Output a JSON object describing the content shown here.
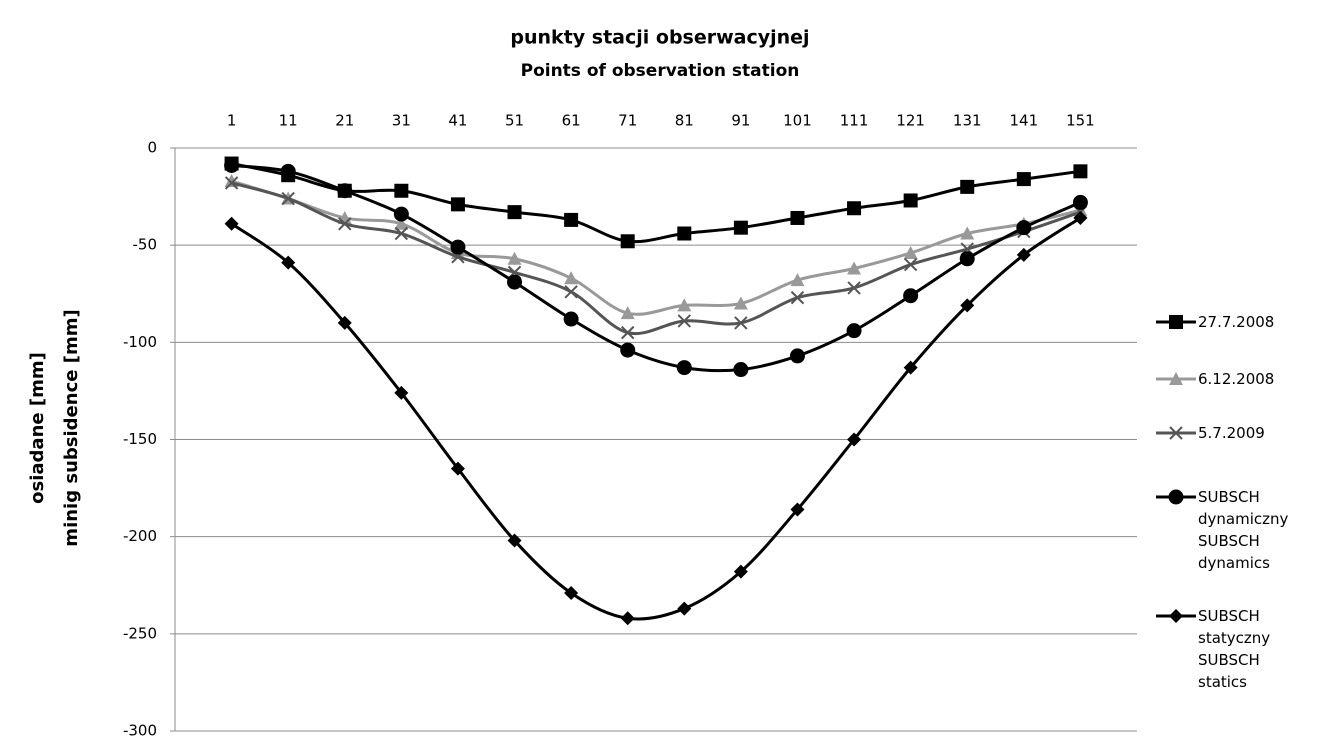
{
  "chart_data": {
    "type": "line",
    "xlabel": [
      "punkty stacji obserwacyjnej",
      "Points of observation station"
    ],
    "ylabel": [
      "osiadane [mm]",
      "minig subsidence [mm]"
    ],
    "x": [
      1,
      11,
      21,
      31,
      41,
      51,
      61,
      71,
      81,
      91,
      101,
      111,
      121,
      131,
      141,
      151
    ],
    "xlim": [
      -9,
      161
    ],
    "xticks": [
      1,
      11,
      21,
      31,
      41,
      51,
      61,
      71,
      81,
      91,
      101,
      111,
      121,
      131,
      141,
      151
    ],
    "ylim": [
      -300,
      0
    ],
    "yticks": [
      0,
      -50,
      -100,
      -150,
      -200,
      -250,
      -300
    ],
    "grid": true,
    "legend": "right",
    "series": [
      {
        "name": "27.7.2008",
        "color": "#000000",
        "marker": "square",
        "values": [
          -8,
          -14,
          -22,
          -22,
          -29,
          -33,
          -37,
          -48,
          -44,
          -41,
          -36,
          -31,
          -27,
          -20,
          -16,
          -12
        ]
      },
      {
        "name": "6.12.2008",
        "color": "#999999",
        "marker": "triangle",
        "values": [
          -17,
          -26,
          -36,
          -39,
          -54,
          -57,
          -67,
          -85,
          -81,
          -80,
          -68,
          -62,
          -54,
          -44,
          -39,
          -32
        ]
      },
      {
        "name": "5.7.2009",
        "color": "#555555",
        "marker": "x",
        "values": [
          -18,
          -26,
          -39,
          -44,
          -56,
          -64,
          -74,
          -95,
          -89,
          -90,
          -77,
          -72,
          -60,
          -52,
          -43,
          -33
        ]
      },
      {
        "name": "SUBSCH dynamiczny SUBSCH dynamics",
        "color": "#000000",
        "marker": "circle",
        "values": [
          -9,
          -12,
          -22,
          -34,
          -51,
          -69,
          -88,
          -104,
          -113,
          -114,
          -107,
          -94,
          -76,
          -57,
          -41,
          -28
        ]
      },
      {
        "name": "SUBSCH statyczny SUBSCH statics",
        "color": "#000000",
        "marker": "diamond",
        "values": [
          -39,
          -59,
          -90,
          -126,
          -165,
          -202,
          -229,
          -242,
          -237,
          -218,
          -186,
          -150,
          -113,
          -81,
          -55,
          -36
        ]
      }
    ]
  }
}
